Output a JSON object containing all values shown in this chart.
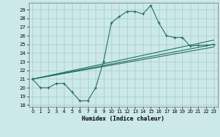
{
  "xlabel": "Humidex (Indice chaleur)",
  "bg_color": "#cce8e8",
  "grid_color": "#aacfcf",
  "line_color": "#1a6b5a",
  "xlim": [
    -0.5,
    23.5
  ],
  "ylim": [
    17.8,
    29.8
  ],
  "yticks": [
    18,
    19,
    20,
    21,
    22,
    23,
    24,
    25,
    26,
    27,
    28,
    29
  ],
  "xticks": [
    0,
    1,
    2,
    3,
    4,
    5,
    6,
    7,
    8,
    9,
    10,
    11,
    12,
    13,
    14,
    15,
    16,
    17,
    18,
    19,
    20,
    21,
    22,
    23
  ],
  "series1": {
    "x": [
      0,
      1,
      2,
      3,
      4,
      5,
      6,
      7,
      8,
      9,
      10,
      11,
      12,
      13,
      14,
      15,
      16,
      17,
      18,
      19,
      20,
      21,
      22,
      23
    ],
    "y": [
      21.0,
      20.0,
      20.0,
      20.5,
      20.5,
      19.5,
      18.5,
      18.5,
      20.0,
      23.0,
      27.5,
      28.2,
      28.8,
      28.8,
      28.5,
      29.5,
      27.5,
      26.0,
      25.8,
      25.8,
      24.8,
      24.9,
      24.9,
      25.0
    ]
  },
  "series2": {
    "x": [
      0,
      23
    ],
    "y": [
      21.0,
      25.5
    ]
  },
  "series3": {
    "x": [
      0,
      23
    ],
    "y": [
      21.0,
      25.0
    ]
  },
  "series4": {
    "x": [
      0,
      23
    ],
    "y": [
      21.0,
      24.7
    ]
  }
}
